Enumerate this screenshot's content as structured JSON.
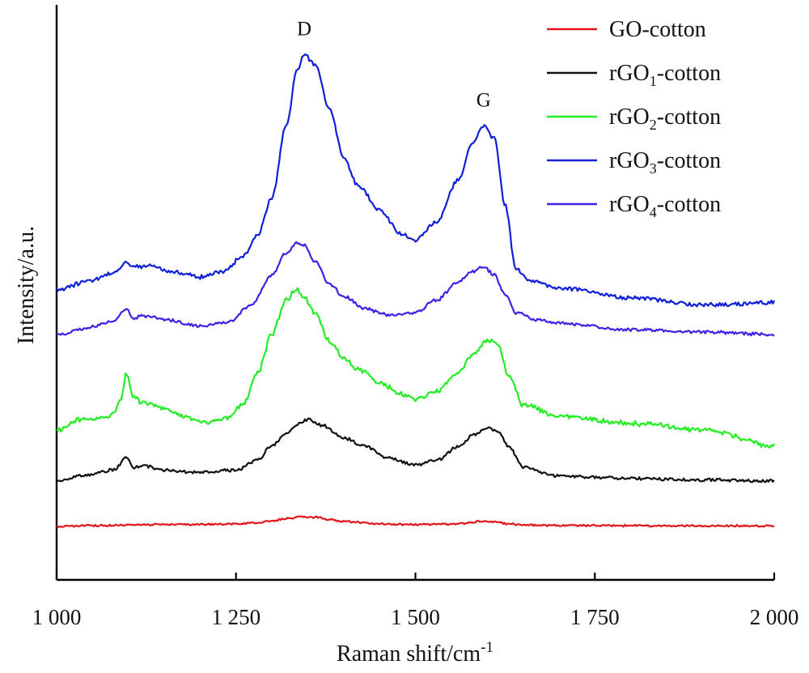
{
  "chart_data": {
    "type": "line",
    "xlabel": "Raman shift/cm",
    "xlabel_sup": "-1",
    "ylabel": "Intensity/a.u.",
    "xlim": [
      1000,
      2000
    ],
    "x_ticks": [
      {
        "value": 1000,
        "label": "1 000"
      },
      {
        "value": 1250,
        "label": "1 250"
      },
      {
        "value": 1500,
        "label": "1 500"
      },
      {
        "value": 1750,
        "label": "1 750"
      },
      {
        "value": 2000,
        "label": "2 000"
      }
    ],
    "y_ticks_shown": false,
    "grid": false,
    "legend_position": "top-right",
    "annotations": [
      {
        "text": "D",
        "x": 1345
      },
      {
        "text": "G",
        "x": 1595
      }
    ],
    "series": [
      {
        "name": "GO-cotton",
        "name_parts": [
          "GO",
          "",
          "-cotton"
        ],
        "color": "#e3141a",
        "x": [
          1000,
          1050,
          1100,
          1150,
          1200,
          1250,
          1280,
          1300,
          1320,
          1340,
          1360,
          1380,
          1400,
          1450,
          1500,
          1540,
          1570,
          1590,
          1610,
          1630,
          1650,
          1700,
          1800,
          1900,
          2000
        ],
        "y": [
          0.0,
          0.3,
          0.6,
          0.8,
          0.8,
          1.0,
          1.5,
          2.2,
          3.1,
          3.9,
          3.7,
          2.8,
          2.0,
          1.0,
          0.7,
          0.9,
          1.3,
          2.1,
          1.9,
          1.0,
          0.6,
          0.4,
          0.3,
          0.2,
          0.2
        ]
      },
      {
        "name": "rGO1-cotton",
        "name_parts": [
          "rGO",
          "1",
          "-cotton"
        ],
        "color": "#111111",
        "x": [
          1000,
          1040,
          1080,
          1097,
          1107,
          1120,
          1150,
          1200,
          1250,
          1280,
          1300,
          1320,
          1340,
          1350,
          1370,
          1400,
          1430,
          1460,
          1500,
          1530,
          1560,
          1580,
          1600,
          1615,
          1630,
          1650,
          1700,
          1800,
          1900,
          2000
        ],
        "y": [
          0.0,
          2.5,
          4.5,
          9.6,
          5.5,
          6.2,
          4.5,
          3.5,
          4.5,
          8.5,
          14.5,
          19.5,
          23.5,
          25.0,
          22.5,
          17.5,
          14.0,
          9.5,
          6.5,
          8.5,
          14.0,
          18.5,
          21.5,
          20.0,
          14.0,
          5.5,
          2.0,
          1.0,
          0.5,
          0.0
        ]
      },
      {
        "name": "rGO2-cotton",
        "name_parts": [
          "rGO",
          "2",
          "-cotton"
        ],
        "color": "#22ee22",
        "x": [
          1000,
          1030,
          1060,
          1080,
          1090,
          1097,
          1107,
          1120,
          1150,
          1180,
          1210,
          1240,
          1260,
          1280,
          1300,
          1320,
          1335,
          1345,
          1360,
          1380,
          1400,
          1420,
          1450,
          1480,
          1500,
          1530,
          1560,
          1580,
          1600,
          1615,
          1630,
          1650,
          1700,
          1800,
          1900,
          2000
        ],
        "y": [
          0.0,
          4.5,
          5.0,
          7.0,
          13.0,
          23.5,
          13.5,
          11.5,
          9.0,
          5.5,
          3.5,
          5.5,
          11.0,
          23.5,
          39.0,
          53.0,
          57.5,
          54.0,
          47.5,
          36.5,
          29.5,
          25.0,
          19.5,
          15.0,
          13.0,
          16.0,
          24.0,
          31.0,
          37.0,
          35.0,
          22.0,
          10.5,
          6.0,
          3.0,
          0.5,
          -6.0
        ]
      },
      {
        "name": "rGO3-cotton",
        "name_parts": [
          "rGO",
          "3",
          "-cotton"
        ],
        "color": "#1020d8",
        "x": [
          1000,
          1050,
          1080,
          1095,
          1110,
          1130,
          1160,
          1200,
          1230,
          1260,
          1280,
          1300,
          1320,
          1335,
          1345,
          1360,
          1380,
          1400,
          1420,
          1450,
          1480,
          1500,
          1530,
          1560,
          1580,
          1595,
          1610,
          1625,
          1640,
          1660,
          1700,
          1800,
          1900,
          2000
        ],
        "y": [
          0.0,
          3.5,
          6.5,
          10.5,
          9.0,
          9.5,
          7.0,
          5.0,
          7.0,
          13.0,
          22.0,
          37.0,
          66.0,
          88.0,
          95.0,
          91.0,
          73.5,
          53.5,
          42.0,
          32.0,
          22.5,
          20.0,
          27.5,
          44.5,
          59.5,
          66.0,
          61.0,
          34.0,
          8.5,
          3.0,
          0.5,
          -3.5,
          -6.5,
          -5.5
        ]
      },
      {
        "name": "rGO4-cotton",
        "name_parts": [
          "rGO",
          "4",
          "-cotton"
        ],
        "color": "#4020e8",
        "x": [
          1000,
          1050,
          1080,
          1097,
          1107,
          1120,
          1150,
          1200,
          1240,
          1270,
          1300,
          1320,
          1335,
          1345,
          1360,
          1380,
          1400,
          1430,
          1460,
          1500,
          1530,
          1560,
          1580,
          1595,
          1610,
          1625,
          1640,
          1670,
          1700,
          1800,
          1900,
          2000
        ],
        "y": [
          0.0,
          3.0,
          5.5,
          10.5,
          6.5,
          7.5,
          6.0,
          3.5,
          5.0,
          11.5,
          24.0,
          33.0,
          37.0,
          36.0,
          29.5,
          20.5,
          15.5,
          10.5,
          8.0,
          9.0,
          14.0,
          21.5,
          25.5,
          27.5,
          24.0,
          16.0,
          9.0,
          6.0,
          4.5,
          2.0,
          1.0,
          0.0
        ]
      }
    ]
  }
}
